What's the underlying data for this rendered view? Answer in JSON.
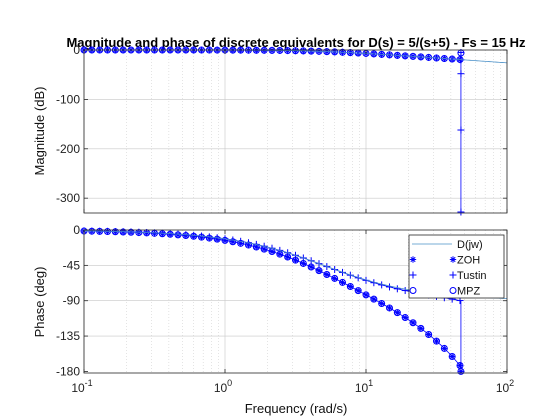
{
  "chart_data": {
    "type": "line",
    "title": "Magnitude and phase of discrete equivalents for D(s) = 5/(s+5) - Fs = 15 Hz",
    "xlabel": "Frequency  (rad/s)",
    "x_scale": "log",
    "xlim": [
      0.1,
      100
    ],
    "x_ticks": [
      {
        "value": 0.1,
        "base": "10",
        "exp": "-1"
      },
      {
        "value": 1,
        "base": "10",
        "exp": "0"
      },
      {
        "value": 10,
        "base": "10",
        "exp": "1"
      },
      {
        "value": 100,
        "base": "10",
        "exp": "2"
      }
    ],
    "grid": "on",
    "legend": {
      "placement": "inside right of phase axes",
      "entries": [
        {
          "label": "D(jw)",
          "marker": "line",
          "color": "#4a90c8"
        },
        {
          "label": "ZOH",
          "marker": "asterisk",
          "color": "#0000ff"
        },
        {
          "label": "Tustin",
          "marker": "plus",
          "color": "#0000ff"
        },
        {
          "label": "MPZ",
          "marker": "circle",
          "color": "#0000ff"
        }
      ]
    },
    "fs_hz": 15,
    "magnitude": {
      "ylabel": "Magnitude (dB)",
      "ylim": [
        -330,
        0
      ],
      "y_ticks": [
        "0",
        "-100",
        "-200",
        "-300"
      ],
      "y_tick_values": [
        0,
        -100,
        -200,
        -300
      ],
      "nyquist_drop": [
        -5,
        -20,
        -48,
        -162,
        -328
      ]
    },
    "phase": {
      "ylabel": "Phase (deg)",
      "ylim": [
        -182,
        0
      ],
      "y_ticks": [
        "0",
        "-45",
        "-90",
        "-135",
        "-180"
      ],
      "y_tick_values": [
        0,
        -45,
        -90,
        -135,
        -180
      ]
    },
    "colors": {
      "continuous": "#4a90c8",
      "markers": "#0000ff",
      "grid": "#c8c8c8"
    }
  }
}
